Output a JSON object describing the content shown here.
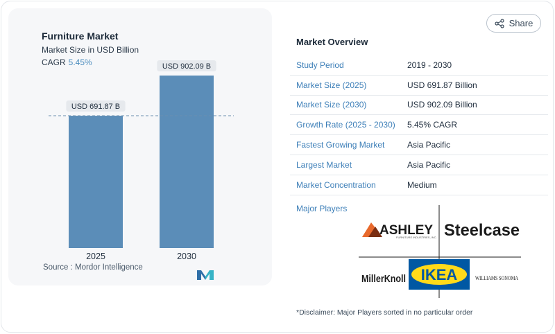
{
  "chart": {
    "title": "Furniture Market",
    "subtitle": "Market Size in USD Billion",
    "cagr_label": "CAGR",
    "cagr_value": "5.45%",
    "source": "Source :  Mordor Intelligence"
  },
  "chart_data": {
    "type": "bar",
    "categories": [
      "2025",
      "2030"
    ],
    "values": [
      691.87,
      902.09
    ],
    "data_labels": [
      "USD 691.87 B",
      "USD 902.09 B"
    ],
    "title": "Furniture Market",
    "subtitle": "Market Size in USD Billion",
    "ylim": [
      0,
      1000
    ],
    "grid": false,
    "reference_line": 691.87,
    "bar_color": "#5b8db8"
  },
  "share": {
    "label": "Share"
  },
  "overview": {
    "title": "Market Overview",
    "rows": [
      {
        "label": "Study Period",
        "value": "2019 - 2030"
      },
      {
        "label": "Market Size (2025)",
        "value": "USD 691.87 Billion"
      },
      {
        "label": "Market Size (2030)",
        "value": "USD 902.09 Billion"
      },
      {
        "label": "Growth Rate (2025 - 2030)",
        "value": "5.45% CAGR"
      },
      {
        "label": "Fastest Growing Market",
        "value": "Asia Pacific"
      },
      {
        "label": "Largest Market",
        "value": "Asia Pacific"
      },
      {
        "label": "Market Concentration",
        "value": "Medium"
      }
    ]
  },
  "players": {
    "title": "Major Players",
    "logos": {
      "ashley": "ASHLEY",
      "ashley_sub": "FURNITURE INDUSTRIES, INC.",
      "steelcase": "Steelcase",
      "millerknoll": "MillerKnoll",
      "ikea": "IKEA",
      "williams": "WILLIAMS SONOMA"
    }
  },
  "disclaimer": "*Disclaimer: Major Players sorted in no particular order",
  "colors": {
    "accent": "#3d7fb8",
    "bar": "#5b8db8",
    "ikea_blue": "#0058a3",
    "ikea_yellow": "#ffda1a",
    "ashley_orange": "#e8692c"
  }
}
